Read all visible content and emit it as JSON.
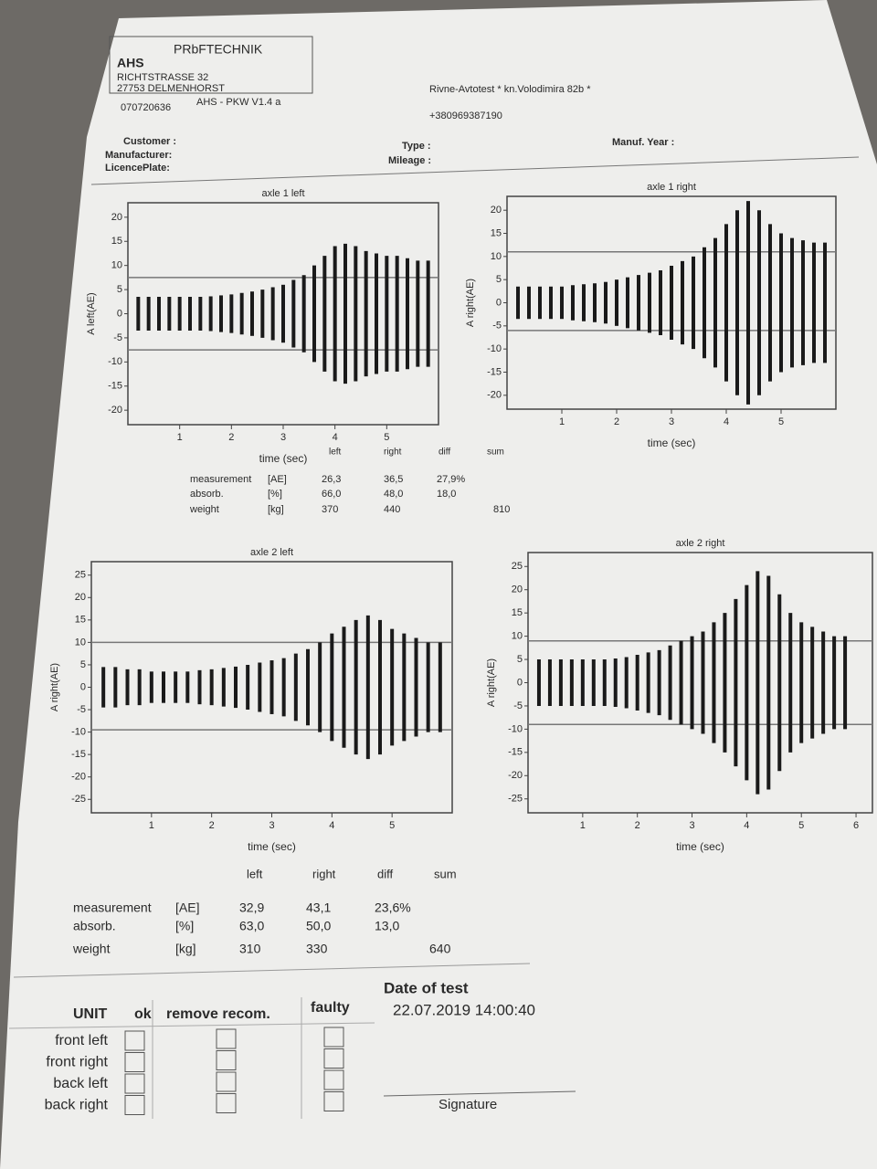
{
  "header": {
    "brand": "AHS",
    "brand2": "PRbFTECHNIK",
    "street": "RICHTSTRASSE 32",
    "city": "27753 DELMENHORST",
    "phone": "070720636",
    "version": "AHS - PKW V1.4 a",
    "station": "Rivne-Avtotest * kn.Volodimira 82b *",
    "station_phone": "+380969387190",
    "customer": "Customer :",
    "manufacturer": "Manufacturer:",
    "licence": "LicencePlate:",
    "type": "Type :",
    "mileage": "Mileage :",
    "year": "Manuf. Year :"
  },
  "chart_data": [
    {
      "type": "oscillation",
      "title": "axle 1 left",
      "x_label": "time (sec)",
      "y_label": "A left(AE)",
      "xlim": [
        0,
        6
      ],
      "xticks": [
        1,
        2,
        3,
        4,
        5
      ],
      "ylim": [
        -23,
        23
      ],
      "yticks": [
        20,
        15,
        10,
        5,
        0,
        -5,
        -10,
        -15,
        -20
      ],
      "reference_lines": [
        7.5,
        -7.5
      ],
      "color": "#1a1a1a",
      "x": [
        0.2,
        0.4,
        0.6,
        0.8,
        1,
        1.2,
        1.4,
        1.6,
        1.8,
        2,
        2.2,
        2.4,
        2.6,
        2.8,
        3,
        3.2,
        3.4,
        3.6,
        3.8,
        4,
        4.2,
        4.4,
        4.6,
        4.8,
        5,
        5.2,
        5.4,
        5.6,
        5.8
      ],
      "values": [
        3.5,
        3.5,
        3.5,
        3.5,
        3.5,
        3.5,
        3.5,
        3.6,
        3.8,
        4,
        4.3,
        4.6,
        5,
        5.5,
        6,
        7,
        8,
        10,
        12,
        14,
        14.5,
        14,
        13,
        12.5,
        12,
        12,
        11.5,
        11,
        11
      ]
    },
    {
      "type": "oscillation",
      "title": "axle 1 right",
      "x_label": "time (sec)",
      "y_label": "A right(AE)",
      "xlim": [
        0,
        6
      ],
      "xticks": [
        1,
        2,
        3,
        4,
        5
      ],
      "ylim": [
        -23,
        23
      ],
      "yticks": [
        20,
        15,
        10,
        5,
        0,
        -5,
        -10,
        -15,
        -20
      ],
      "reference_lines": [
        11,
        -6
      ],
      "color": "#1a1a1a",
      "x": [
        0.2,
        0.4,
        0.6,
        0.8,
        1,
        1.2,
        1.4,
        1.6,
        1.8,
        2,
        2.2,
        2.4,
        2.6,
        2.8,
        3,
        3.2,
        3.4,
        3.6,
        3.8,
        4,
        4.2,
        4.4,
        4.6,
        4.8,
        5,
        5.2,
        5.4,
        5.6,
        5.8
      ],
      "values": [
        3.5,
        3.5,
        3.5,
        3.5,
        3.5,
        3.8,
        4,
        4.2,
        4.5,
        5,
        5.5,
        6,
        6.5,
        7,
        8,
        9,
        10,
        12,
        14,
        17,
        20,
        22,
        20,
        17,
        15,
        14,
        13.5,
        13,
        13
      ]
    },
    {
      "type": "oscillation",
      "title": "axle 2 left",
      "x_label": "time (sec)",
      "y_label": "A right(AE)",
      "xlim": [
        0,
        6
      ],
      "xticks": [
        1,
        2,
        3,
        4,
        5
      ],
      "ylim": [
        -28,
        28
      ],
      "yticks": [
        25,
        20,
        15,
        10,
        5,
        0,
        -5,
        -10,
        -15,
        -20,
        -25
      ],
      "reference_lines": [
        10,
        -9.5
      ],
      "color": "#1a1a1a",
      "x": [
        0.2,
        0.4,
        0.6,
        0.8,
        1,
        1.2,
        1.4,
        1.6,
        1.8,
        2,
        2.2,
        2.4,
        2.6,
        2.8,
        3,
        3.2,
        3.4,
        3.6,
        3.8,
        4,
        4.2,
        4.4,
        4.6,
        4.8,
        5,
        5.2,
        5.4,
        5.6,
        5.8
      ],
      "values": [
        4.5,
        4.5,
        4,
        4,
        3.5,
        3.5,
        3.5,
        3.5,
        3.8,
        4,
        4.3,
        4.6,
        5,
        5.5,
        6,
        6.5,
        7.5,
        8.5,
        10,
        12,
        13.5,
        15,
        16,
        15,
        13,
        12,
        11,
        10,
        10
      ]
    },
    {
      "type": "oscillation",
      "title": "axle 2 right",
      "x_label": "time (sec)",
      "y_label": "A right(AE)",
      "xlim": [
        0,
        6.3
      ],
      "xticks": [
        1,
        2,
        3,
        4,
        5,
        6
      ],
      "ylim": [
        -28,
        28
      ],
      "yticks": [
        25,
        20,
        15,
        10,
        5,
        0,
        -5,
        -10,
        -15,
        -20,
        -25
      ],
      "reference_lines": [
        9,
        -9
      ],
      "color": "#1a1a1a",
      "x": [
        0.2,
        0.4,
        0.6,
        0.8,
        1,
        1.2,
        1.4,
        1.6,
        1.8,
        2,
        2.2,
        2.4,
        2.6,
        2.8,
        3,
        3.2,
        3.4,
        3.6,
        3.8,
        4,
        4.2,
        4.4,
        4.6,
        4.8,
        5,
        5.2,
        5.4,
        5.6,
        5.8
      ],
      "values": [
        5,
        5,
        5,
        5,
        5,
        5,
        5,
        5.2,
        5.5,
        6,
        6.5,
        7,
        8,
        9,
        10,
        11,
        13,
        15,
        18,
        21,
        24,
        23,
        19,
        15,
        13,
        12,
        11,
        10,
        10
      ]
    }
  ],
  "tables": [
    {
      "columns": [
        "left",
        "right",
        "diff",
        "sum"
      ],
      "rows": [
        [
          "measurement",
          "[AE]",
          "26,3",
          "36,5",
          "27,9%",
          null
        ],
        [
          "absorb.",
          "[%]",
          "66,0",
          "48,0",
          "18,0",
          null
        ],
        [
          "weight",
          "[kg]",
          "370",
          "440",
          null,
          "810"
        ]
      ]
    },
    {
      "columns": [
        "left",
        "right",
        "diff",
        "sum"
      ],
      "rows": [
        [
          "measurement",
          "[AE]",
          "32,9",
          "43,1",
          "23,6%",
          null
        ],
        [
          "absorb.",
          "[%]",
          "63,0",
          "50,0",
          "13,0",
          null
        ],
        [
          "weight",
          "[kg]",
          "310",
          "330",
          null,
          "640"
        ]
      ]
    }
  ],
  "units": {
    "header": [
      "UNIT",
      "ok",
      "remove recom.",
      "faulty"
    ],
    "rows": [
      "front left",
      "front right",
      "back left",
      "back right"
    ]
  },
  "footer": {
    "date_label": "Date of test",
    "date": "22.07.2019 14:00:40",
    "signature": "Signature"
  }
}
